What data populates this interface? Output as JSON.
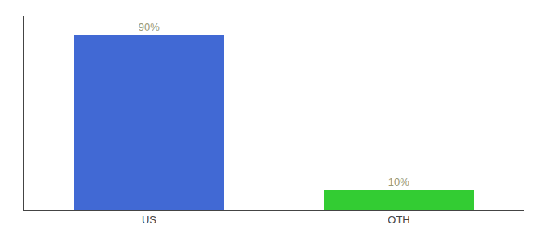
{
  "chart_data": {
    "type": "bar",
    "categories": [
      "US",
      "OTH"
    ],
    "values": [
      90,
      10
    ],
    "value_labels": [
      "90%",
      "10%"
    ],
    "colors": [
      "#4169d4",
      "#33cc33"
    ],
    "ylim": [
      0,
      100
    ],
    "data_labels": true,
    "tick_labels": "x",
    "grid": false
  }
}
